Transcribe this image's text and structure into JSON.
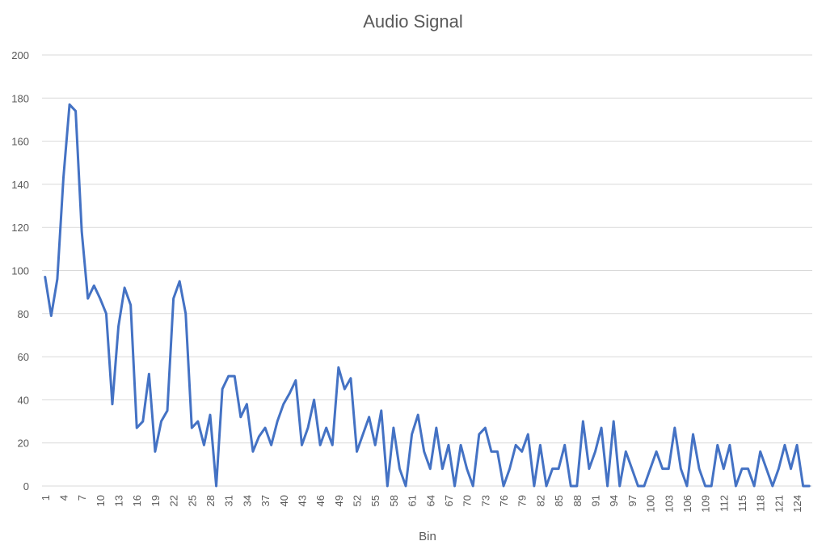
{
  "chart_data": {
    "type": "line",
    "title": "Audio Signal",
    "xlabel": "Bin",
    "ylabel": "",
    "ylim": [
      0,
      200
    ],
    "yticks": [
      0,
      20,
      40,
      60,
      80,
      100,
      120,
      140,
      160,
      180,
      200
    ],
    "grid": true,
    "legend": "none",
    "color": "#4472c4",
    "x_tick_labels": [
      "1",
      "4",
      "7",
      "10",
      "13",
      "16",
      "19",
      "22",
      "25",
      "28",
      "31",
      "34",
      "37",
      "40",
      "43",
      "46",
      "49",
      "52",
      "55",
      "58",
      "61",
      "64",
      "67",
      "70",
      "73",
      "76",
      "79",
      "82",
      "85",
      "88",
      "91",
      "94",
      "97",
      "100",
      "103",
      "106",
      "109",
      "112",
      "115",
      "118",
      "121",
      "124"
    ],
    "x": [
      1,
      2,
      3,
      4,
      5,
      6,
      7,
      8,
      9,
      10,
      11,
      12,
      13,
      14,
      15,
      16,
      17,
      18,
      19,
      20,
      21,
      22,
      23,
      24,
      25,
      26,
      27,
      28,
      29,
      30,
      31,
      32,
      33,
      34,
      35,
      36,
      37,
      38,
      39,
      40,
      41,
      42,
      43,
      44,
      45,
      46,
      47,
      48,
      49,
      50,
      51,
      52,
      53,
      54,
      55,
      56,
      57,
      58,
      59,
      60,
      61,
      62,
      63,
      64,
      65,
      66,
      67,
      68,
      69,
      70,
      71,
      72,
      73,
      74,
      75,
      76,
      77,
      78,
      79,
      80,
      81,
      82,
      83,
      84,
      85,
      86,
      87,
      88,
      89,
      90,
      91,
      92,
      93,
      94,
      95,
      96,
      97,
      98,
      99,
      100,
      101,
      102,
      103,
      104,
      105,
      106,
      107,
      108,
      109,
      110,
      111,
      112,
      113,
      114,
      115,
      116,
      117,
      118,
      119,
      120,
      121,
      122,
      123,
      124,
      125,
      126
    ],
    "series": [
      {
        "values": [
          97,
          79,
          96,
          143,
          177,
          174,
          118,
          87,
          93,
          87,
          80,
          38,
          74,
          92,
          84,
          27,
          30,
          52,
          16,
          30,
          35,
          87,
          95,
          80,
          27,
          30,
          19,
          33,
          0,
          45,
          51,
          51,
          32,
          38,
          16,
          23,
          27,
          19,
          30,
          38,
          43,
          49,
          19,
          27,
          40,
          19,
          27,
          19,
          55,
          45,
          50,
          16,
          24,
          32,
          19,
          35,
          0,
          27,
          8,
          0,
          24,
          33,
          16,
          8,
          27,
          8,
          19,
          0,
          19,
          8,
          0,
          24,
          27,
          16,
          16,
          0,
          8,
          19,
          16,
          24,
          0,
          19,
          0,
          8,
          8,
          19,
          0,
          0,
          30,
          8,
          16,
          27,
          0,
          30,
          0,
          16,
          8,
          0,
          0,
          8,
          16,
          8,
          8,
          27,
          8,
          0,
          24,
          8,
          0,
          0,
          19,
          8,
          19,
          0,
          8,
          8,
          0,
          16,
          8,
          0,
          8,
          19,
          8,
          19,
          0,
          0
        ]
      }
    ]
  }
}
